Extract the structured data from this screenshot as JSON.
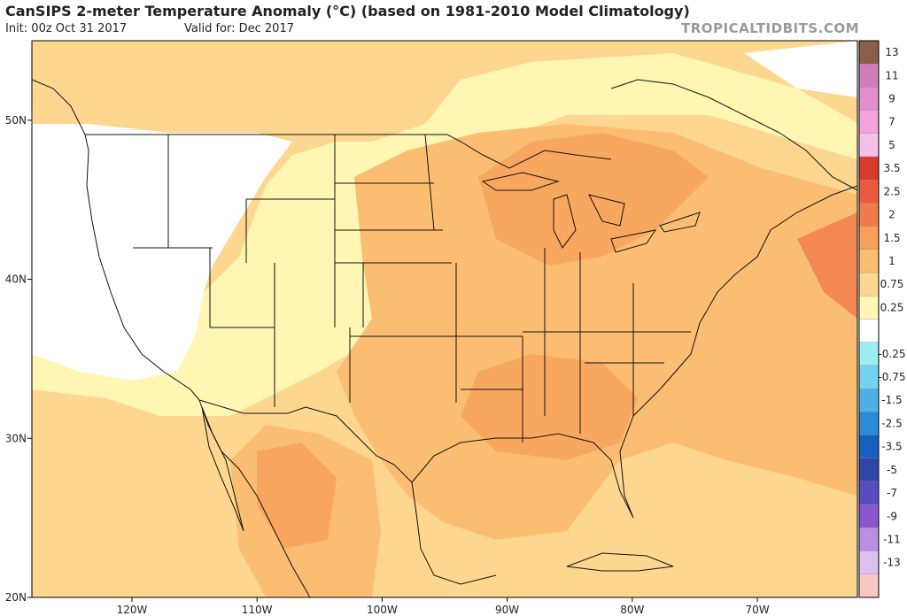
{
  "header": {
    "title": "CanSIPS 2-meter Temperature Anomaly (°C) (based on 1981-2010 Model Climatology)",
    "init": "Init: 00z Oct 31 2017",
    "valid": "Valid for: Dec 2017",
    "brand": "TROPICALTIDBITS.COM"
  },
  "map": {
    "lon_range": [
      -128,
      -62
    ],
    "lat_range": [
      20,
      55
    ],
    "x_ticks": [
      {
        "lon": -120,
        "label": "120W"
      },
      {
        "lon": -110,
        "label": "110W"
      },
      {
        "lon": -100,
        "label": "100W"
      },
      {
        "lon": -90,
        "label": "90W"
      },
      {
        "lon": -80,
        "label": "80W"
      },
      {
        "lon": -70,
        "label": "70W"
      }
    ],
    "y_ticks": [
      {
        "lat": 50,
        "label": "50N"
      },
      {
        "lat": 40,
        "label": "40N"
      },
      {
        "lat": 30,
        "label": "30N"
      },
      {
        "lat": 20,
        "label": "20N"
      }
    ]
  },
  "colorbar": {
    "levels": [
      {
        "label": "13",
        "color": "#8a5e48"
      },
      {
        "label": "11",
        "color": "#cf7fb8"
      },
      {
        "label": "9",
        "color": "#e38fcb"
      },
      {
        "label": "7",
        "color": "#f2a3dc"
      },
      {
        "label": "5",
        "color": "#f6bfe6"
      },
      {
        "label": "3.5",
        "color": "#d73a2f"
      },
      {
        "label": "2.5",
        "color": "#e95b3e"
      },
      {
        "label": "2",
        "color": "#f27a4b"
      },
      {
        "label": "1.5",
        "color": "#f7a05a"
      },
      {
        "label": "1",
        "color": "#fbbd72"
      },
      {
        "label": "0.75",
        "color": "#fdd78f"
      },
      {
        "label": "0.25",
        "color": "#fff6b3"
      },
      {
        "label": "",
        "color": "#ffffff"
      },
      {
        "label": "-0.25",
        "color": "#9ceef0"
      },
      {
        "label": "-0.75",
        "color": "#74d4ee"
      },
      {
        "label": "-1.5",
        "color": "#4fb0e8"
      },
      {
        "label": "-2.5",
        "color": "#2b8ad8"
      },
      {
        "label": "-3.5",
        "color": "#1760c0"
      },
      {
        "label": "-5",
        "color": "#2e46a8"
      },
      {
        "label": "-7",
        "color": "#5a4cc0"
      },
      {
        "label": "-9",
        "color": "#8a56d0"
      },
      {
        "label": "-11",
        "color": "#b98fe0"
      },
      {
        "label": "-13",
        "color": "#dcc0f0"
      },
      {
        "label": "",
        "color": "#f6c8c0"
      }
    ]
  }
}
